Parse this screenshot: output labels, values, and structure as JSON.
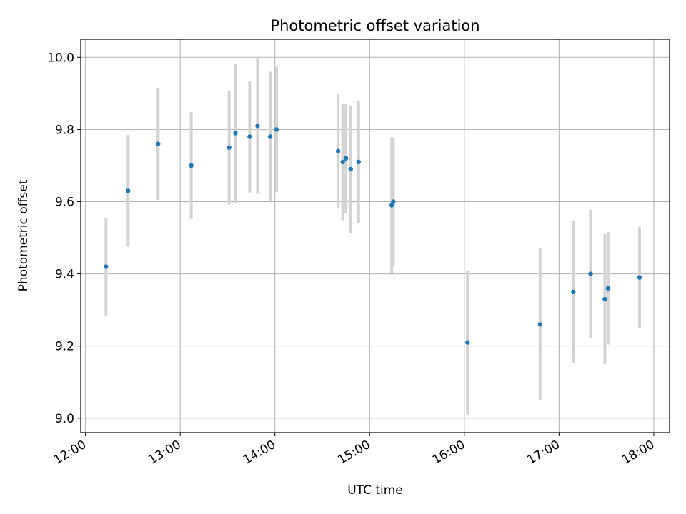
{
  "chart_data": {
    "type": "scatter",
    "title": "Photometric offset variation",
    "xlabel": "UTC time",
    "ylabel": "Photometric offset",
    "x_ticks": [
      "12:00",
      "13:00",
      "14:00",
      "15:00",
      "16:00",
      "17:00",
      "18:00"
    ],
    "xlim": [
      "11:57",
      "18:10"
    ],
    "y_ticks": [
      "9.0",
      "9.2",
      "9.4",
      "9.6",
      "9.8",
      "10.0"
    ],
    "ylim": [
      8.96,
      10.05
    ],
    "grid": true,
    "colors": {
      "point": "#1f77b4",
      "error_bar": "#d3d3d3",
      "grid": "#b0b0b0"
    },
    "series": [
      {
        "x": [
          "12:13",
          "12:27",
          "12:46",
          "13:07",
          "13:31",
          "13:35",
          "13:44",
          "13:49",
          "13:57",
          "14:01",
          "14:40",
          "14:43",
          "14:45",
          "14:48",
          "14:53",
          "15:14",
          "15:15",
          "16:02",
          "16:48",
          "17:09",
          "17:20",
          "17:29",
          "17:31",
          "17:51"
        ],
        "y": [
          9.42,
          9.63,
          9.76,
          9.7,
          9.75,
          9.79,
          9.78,
          9.81,
          9.78,
          9.8,
          9.74,
          9.71,
          9.72,
          9.69,
          9.71,
          9.59,
          9.6,
          9.21,
          9.26,
          9.35,
          9.4,
          9.33,
          9.36,
          9.39
        ],
        "yerr": [
          0.135,
          0.155,
          0.155,
          0.148,
          0.158,
          0.193,
          0.155,
          0.188,
          0.18,
          0.174,
          0.159,
          0.162,
          0.152,
          0.176,
          0.17,
          0.188,
          0.178,
          0.2,
          0.21,
          0.198,
          0.178,
          0.18,
          0.156,
          0.14
        ]
      }
    ]
  }
}
